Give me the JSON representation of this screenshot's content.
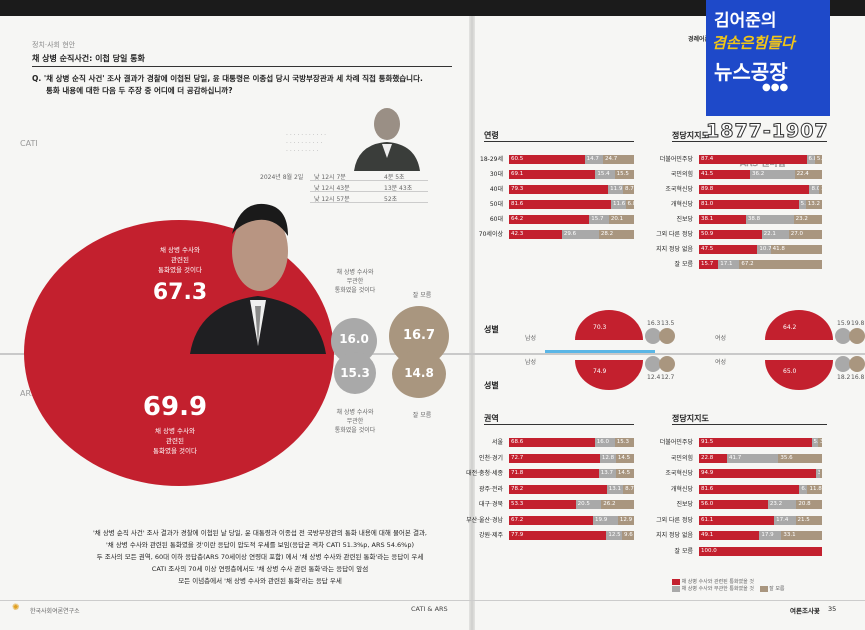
{
  "section": "정치·사회 현안",
  "headline": "채 상병 순직사건: 이첩 당일 통화",
  "header_right": "경례어론",
  "question": {
    "line1": "Q. '채 상병 순직 사건' 조사 결과가 경찰에 이첩된 당일, 윤 대통령은 이종섭 당시 국방부장관과 세 차례 직접 통화했습니다.",
    "line2": "통화 내용에 대한 다음 두 주장 중 어디에 더 공감하십니까?"
  },
  "labels": {
    "cati": "CATI",
    "ars": "ARS"
  },
  "call_log": {
    "date": "2024년 8월 2일",
    "rows": [
      {
        "time": "낮 12시 7분",
        "dur": "4분 5초"
      },
      {
        "time": "낮 12시 43분",
        "dur": "13분 43초"
      },
      {
        "time": "낮 12시 57분",
        "dur": "52초"
      }
    ]
  },
  "big_circle": {
    "cati_label_l1": "채 상병 수사와",
    "cati_label_l2": "관련된",
    "cati_label_l3": "통화였을 것이다",
    "cati_value": "67.3",
    "ars_value": "69.9",
    "ars_label_l1": "채 상병 수사와",
    "ars_label_l2": "관련된",
    "ars_label_l3": "통화였을 것이다"
  },
  "small_circles": {
    "unrelated_label_l1": "채 상병 수사와",
    "unrelated_label_l2": "무관한",
    "unrelated_label_l3": "통화였을 것이다",
    "unrelated_cati": "16.0",
    "unrelated_ars": "15.3",
    "dk_label": "잘 모름",
    "dk_cati": "16.7",
    "dk_ars": "14.8"
  },
  "summary": [
    "'채 상병 순직 사건' 조사 결과가 경찰에 이첩된 날 당일, 윤 대통령과 이종섭 전 국방부장관의 통화 내용에 대해 물어본 결과,",
    "'채 상병 수사와 관련된 통화였을 것'이란 응답이 압도적 우세를 보임(응답균 격차 CATI 51.3%p, ARS 54.6%p)",
    "두 조사의 모든 권역, 60대 이하 응답층(ARS 70세이상 연령대 포함) 에서 '채 상병 수사와 관련된 통화'라는 응답이 우세",
    "CATI 조사의 70세 이상 연령층에서도 '채 상병 수사 관련 통화'라는 응답이 앞섬",
    "모든 이념층에서 '채 상병 수사와 관련된 통화'라는 응답 우세"
  ],
  "footer": {
    "left_note": "한국사회여론연구소",
    "center": "CATI & ARS",
    "right": "여론조사꽃",
    "page_num": "35"
  },
  "logo": {
    "line1": "김어준의",
    "line2": "겸손은힘들다",
    "line3": "뉴스공장",
    "years": "1877-1907",
    "sub": "ARS 멘비심"
  },
  "colors": {
    "red": "#c3202e",
    "gray": "#a9a9a9",
    "brown": "#a9967f",
    "blue": "#1e49c9"
  },
  "chart_data": [
    {
      "type": "bar",
      "title": "연령",
      "categories": [
        "18-29세",
        "30대",
        "40대",
        "50대",
        "60대",
        "70세이상"
      ],
      "series": [
        {
          "name": "채 상병 수사와 관련된 통화였을 것",
          "values": [
            60.5,
            69.1,
            79.3,
            81.6,
            64.2,
            42.3
          ]
        },
        {
          "name": "채 상병 수사와 무관한 통화였을 것",
          "values": [
            14.7,
            15.4,
            11.9,
            11.6,
            15.7,
            29.6
          ]
        },
        {
          "name": "잘 모름",
          "values": [
            24.7,
            15.5,
            8.7,
            6.8,
            20.1,
            28.2
          ]
        }
      ]
    },
    {
      "type": "bar",
      "title": "정당지지도",
      "categories": [
        "더불어민주당",
        "국민의힘",
        "조국혁신당",
        "개혁신당",
        "진보당",
        "그외 다른 정당",
        "지지 정당 없음",
        "잘 모름"
      ],
      "series": [
        {
          "name": "채 상병 수사와 관련된 통화였을 것",
          "values": [
            87.4,
            41.5,
            89.8,
            81.0,
            38.1,
            50.9,
            47.5,
            15.7
          ]
        },
        {
          "name": "채 상병 수사와 무관한 통화였을 것",
          "values": [
            6.8,
            36.2,
            8.0,
            5.8,
            38.8,
            22.1,
            10.7,
            17.1
          ]
        },
        {
          "name": "잘 모름",
          "values": [
            5.7,
            22.4,
            2.2,
            13.2,
            23.2,
            27.0,
            41.8,
            67.2
          ]
        }
      ]
    },
    {
      "type": "bar",
      "title": "성별",
      "categories": [
        "남성 (CATI)",
        "남성 (ARS)",
        "여성 (CATI)",
        "여성 (ARS)"
      ],
      "series": [
        {
          "name": "채 상병 수사와 관련된 통화였을 것",
          "values": [
            70.3,
            74.9,
            64.2,
            65.0
          ]
        },
        {
          "name": "채 상병 수사와 무관한 통화였을 것",
          "values": [
            16.3,
            12.4,
            15.9,
            18.2
          ]
        },
        {
          "name": "잘 모름",
          "values": [
            13.5,
            12.7,
            19.8,
            16.8
          ]
        }
      ]
    },
    {
      "type": "bar",
      "title": "권역",
      "categories": [
        "서울",
        "인천·경기",
        "대전·충청·세종",
        "광주·전라",
        "대구·경북",
        "부산·울산·경남",
        "강원·제주"
      ],
      "series": [
        {
          "name": "채 상병 수사와 관련된 통화였을 것",
          "values": [
            68.6,
            72.7,
            71.8,
            78.2,
            53.3,
            67.2,
            77.9
          ]
        },
        {
          "name": "채 상병 수사와 무관한 통화였을 것",
          "values": [
            16.0,
            12.8,
            13.7,
            13.1,
            20.5,
            19.9,
            12.5
          ]
        },
        {
          "name": "잘 모름",
          "values": [
            15.3,
            14.5,
            14.5,
            8.7,
            26.2,
            12.9,
            9.6
          ]
        }
      ]
    },
    {
      "type": "bar",
      "title": "정당지지도",
      "categories": [
        "더불어민주당",
        "국민의힘",
        "조국혁신당",
        "개혁신당",
        "진보당",
        "그외 다른 정당",
        "지지 정당 없음",
        "잘 모름"
      ],
      "series": [
        {
          "name": "채 상병 수사와 관련된 통화였을 것",
          "values": [
            91.5,
            22.8,
            94.9,
            81.6,
            56.0,
            61.1,
            49.1,
            100.0
          ]
        },
        {
          "name": "채 상병 수사와 무관한 통화였을 것",
          "values": [
            5.2,
            41.7,
            3.2,
            6.6,
            23.2,
            17.4,
            17.9,
            0
          ]
        },
        {
          "name": "잘 모름",
          "values": [
            3.2,
            35.6,
            1.9,
            11.8,
            20.8,
            21.5,
            33.1,
            0
          ]
        }
      ]
    }
  ],
  "legend": {
    "related": "채 상병 수사와 관련된 통화였을 것",
    "unrelated": "채 상병 수사와 무관한 통화였을 것",
    "dk": "잘 모름"
  }
}
